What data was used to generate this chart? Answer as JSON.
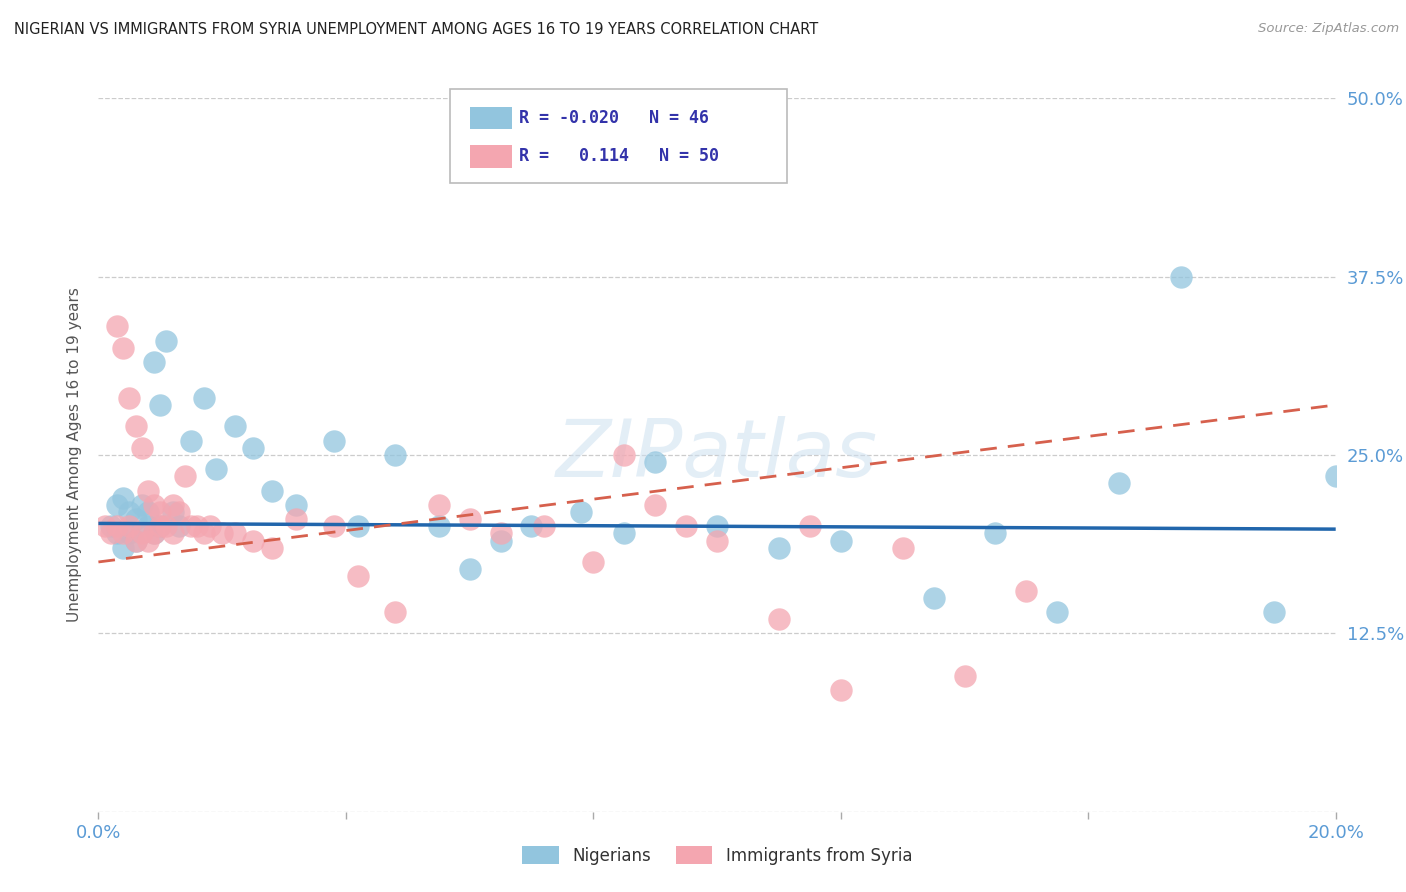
{
  "title": "NIGERIAN VS IMMIGRANTS FROM SYRIA UNEMPLOYMENT AMONG AGES 16 TO 19 YEARS CORRELATION CHART",
  "source": "Source: ZipAtlas.com",
  "ylabel": "Unemployment Among Ages 16 to 19 years",
  "xlim": [
    0.0,
    0.2
  ],
  "ylim": [
    0.0,
    0.5
  ],
  "nigerians_color": "#92c5de",
  "syrians_color": "#f4a6b0",
  "regression_line_nigerian_color": "#2166ac",
  "regression_line_syrian_color": "#d6604d",
  "watermark": "ZIPatlas",
  "nig_line_x": [
    0.0,
    0.2
  ],
  "nig_line_y": [
    0.202,
    0.198
  ],
  "syr_line_x": [
    0.0,
    0.2
  ],
  "syr_line_y": [
    0.175,
    0.285
  ],
  "nigerians_x": [
    0.002,
    0.003,
    0.003,
    0.004,
    0.004,
    0.005,
    0.005,
    0.006,
    0.006,
    0.007,
    0.008,
    0.008,
    0.009,
    0.009,
    0.01,
    0.01,
    0.011,
    0.012,
    0.013,
    0.015,
    0.017,
    0.019,
    0.022,
    0.025,
    0.028,
    0.032,
    0.038,
    0.042,
    0.048,
    0.055,
    0.06,
    0.065,
    0.07,
    0.078,
    0.085,
    0.09,
    0.1,
    0.11,
    0.12,
    0.135,
    0.145,
    0.155,
    0.165,
    0.175,
    0.19,
    0.2
  ],
  "nigerians_y": [
    0.2,
    0.215,
    0.195,
    0.22,
    0.185,
    0.21,
    0.195,
    0.205,
    0.19,
    0.215,
    0.2,
    0.21,
    0.315,
    0.195,
    0.2,
    0.285,
    0.33,
    0.21,
    0.2,
    0.26,
    0.29,
    0.24,
    0.27,
    0.255,
    0.225,
    0.215,
    0.26,
    0.2,
    0.25,
    0.2,
    0.17,
    0.19,
    0.2,
    0.21,
    0.195,
    0.245,
    0.2,
    0.185,
    0.19,
    0.15,
    0.195,
    0.14,
    0.23,
    0.375,
    0.14,
    0.235
  ],
  "syrians_x": [
    0.001,
    0.002,
    0.003,
    0.003,
    0.004,
    0.004,
    0.005,
    0.005,
    0.006,
    0.006,
    0.007,
    0.007,
    0.008,
    0.008,
    0.009,
    0.009,
    0.01,
    0.01,
    0.011,
    0.012,
    0.012,
    0.013,
    0.014,
    0.015,
    0.016,
    0.017,
    0.018,
    0.02,
    0.022,
    0.025,
    0.028,
    0.032,
    0.038,
    0.042,
    0.048,
    0.055,
    0.06,
    0.065,
    0.072,
    0.08,
    0.085,
    0.09,
    0.095,
    0.1,
    0.11,
    0.115,
    0.12,
    0.13,
    0.14,
    0.15
  ],
  "syrians_y": [
    0.2,
    0.195,
    0.34,
    0.2,
    0.325,
    0.195,
    0.29,
    0.2,
    0.27,
    0.19,
    0.255,
    0.195,
    0.225,
    0.19,
    0.215,
    0.195,
    0.21,
    0.2,
    0.2,
    0.215,
    0.195,
    0.21,
    0.235,
    0.2,
    0.2,
    0.195,
    0.2,
    0.195,
    0.195,
    0.19,
    0.185,
    0.205,
    0.2,
    0.165,
    0.14,
    0.215,
    0.205,
    0.195,
    0.2,
    0.175,
    0.25,
    0.215,
    0.2,
    0.19,
    0.135,
    0.2,
    0.085,
    0.185,
    0.095,
    0.155
  ]
}
